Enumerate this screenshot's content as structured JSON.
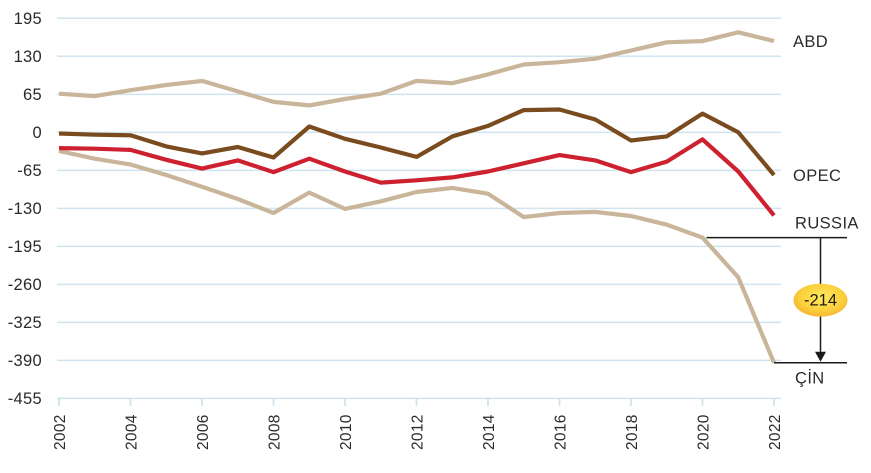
{
  "chart_data": {
    "type": "line",
    "title": "",
    "xlabel": "",
    "ylabel": "",
    "x": [
      2002,
      2003,
      2004,
      2005,
      2006,
      2007,
      2008,
      2009,
      2010,
      2011,
      2012,
      2013,
      2014,
      2015,
      2016,
      2017,
      2018,
      2019,
      2020,
      2021,
      2022
    ],
    "x_ticks": [
      "2002",
      "2004",
      "2006",
      "2008",
      "2010",
      "2012",
      "2014",
      "2016",
      "2018",
      "2020",
      "2022"
    ],
    "y_ticks": [
      "195",
      "130",
      "65",
      "0",
      "-65",
      "-130",
      "-195",
      "-260",
      "-325",
      "-390",
      "-455"
    ],
    "ylim": [
      -455,
      195
    ],
    "xlim": [
      2002,
      2022
    ],
    "grid": "horizontal",
    "grid_color": "#cfe4ee",
    "text_color": "#2b2b2b",
    "legend_position": "right-end-labels",
    "series": [
      {
        "name": "ABD",
        "color": "#c9b59a",
        "values": [
          66,
          62,
          72,
          81,
          88,
          70,
          52,
          46,
          57,
          66,
          88,
          84,
          99,
          116,
          120,
          126,
          140,
          154,
          156,
          171,
          156
        ]
      },
      {
        "name": "OPEC",
        "color": "#7a4b1e",
        "values": [
          -2,
          -4,
          -5,
          -24,
          -36,
          -25,
          -43,
          10,
          -11,
          -26,
          -42,
          -7,
          11,
          38,
          39,
          22,
          -14,
          -7,
          32,
          0,
          -73
        ]
      },
      {
        "name": "RUSSIA",
        "color": "#cd2130",
        "values": [
          -27,
          -28,
          -30,
          -47,
          -62,
          -48,
          -68,
          -45,
          -67,
          -86,
          -82,
          -77,
          -67,
          -53,
          -39,
          -48,
          -68,
          -50,
          -12,
          -67,
          -142
        ]
      },
      {
        "name": "ÇİN",
        "color": "#c9b59a",
        "values": [
          -32,
          -45,
          -55,
          -73,
          -93,
          -114,
          -138,
          -103,
          -131,
          -118,
          -102,
          -95,
          -105,
          -145,
          -138,
          -136,
          -143,
          -158,
          -180,
          -248,
          -394
        ]
      }
    ],
    "annotation": {
      "label": "-214",
      "series": "ÇİN",
      "from_year": 2020,
      "to_year": 2022,
      "line_color": "#1a1a1a",
      "ellipse_color_center": "#ffe95e",
      "ellipse_color_mid": "#fcd03c",
      "ellipse_color_edge": "#f0a22c"
    }
  }
}
